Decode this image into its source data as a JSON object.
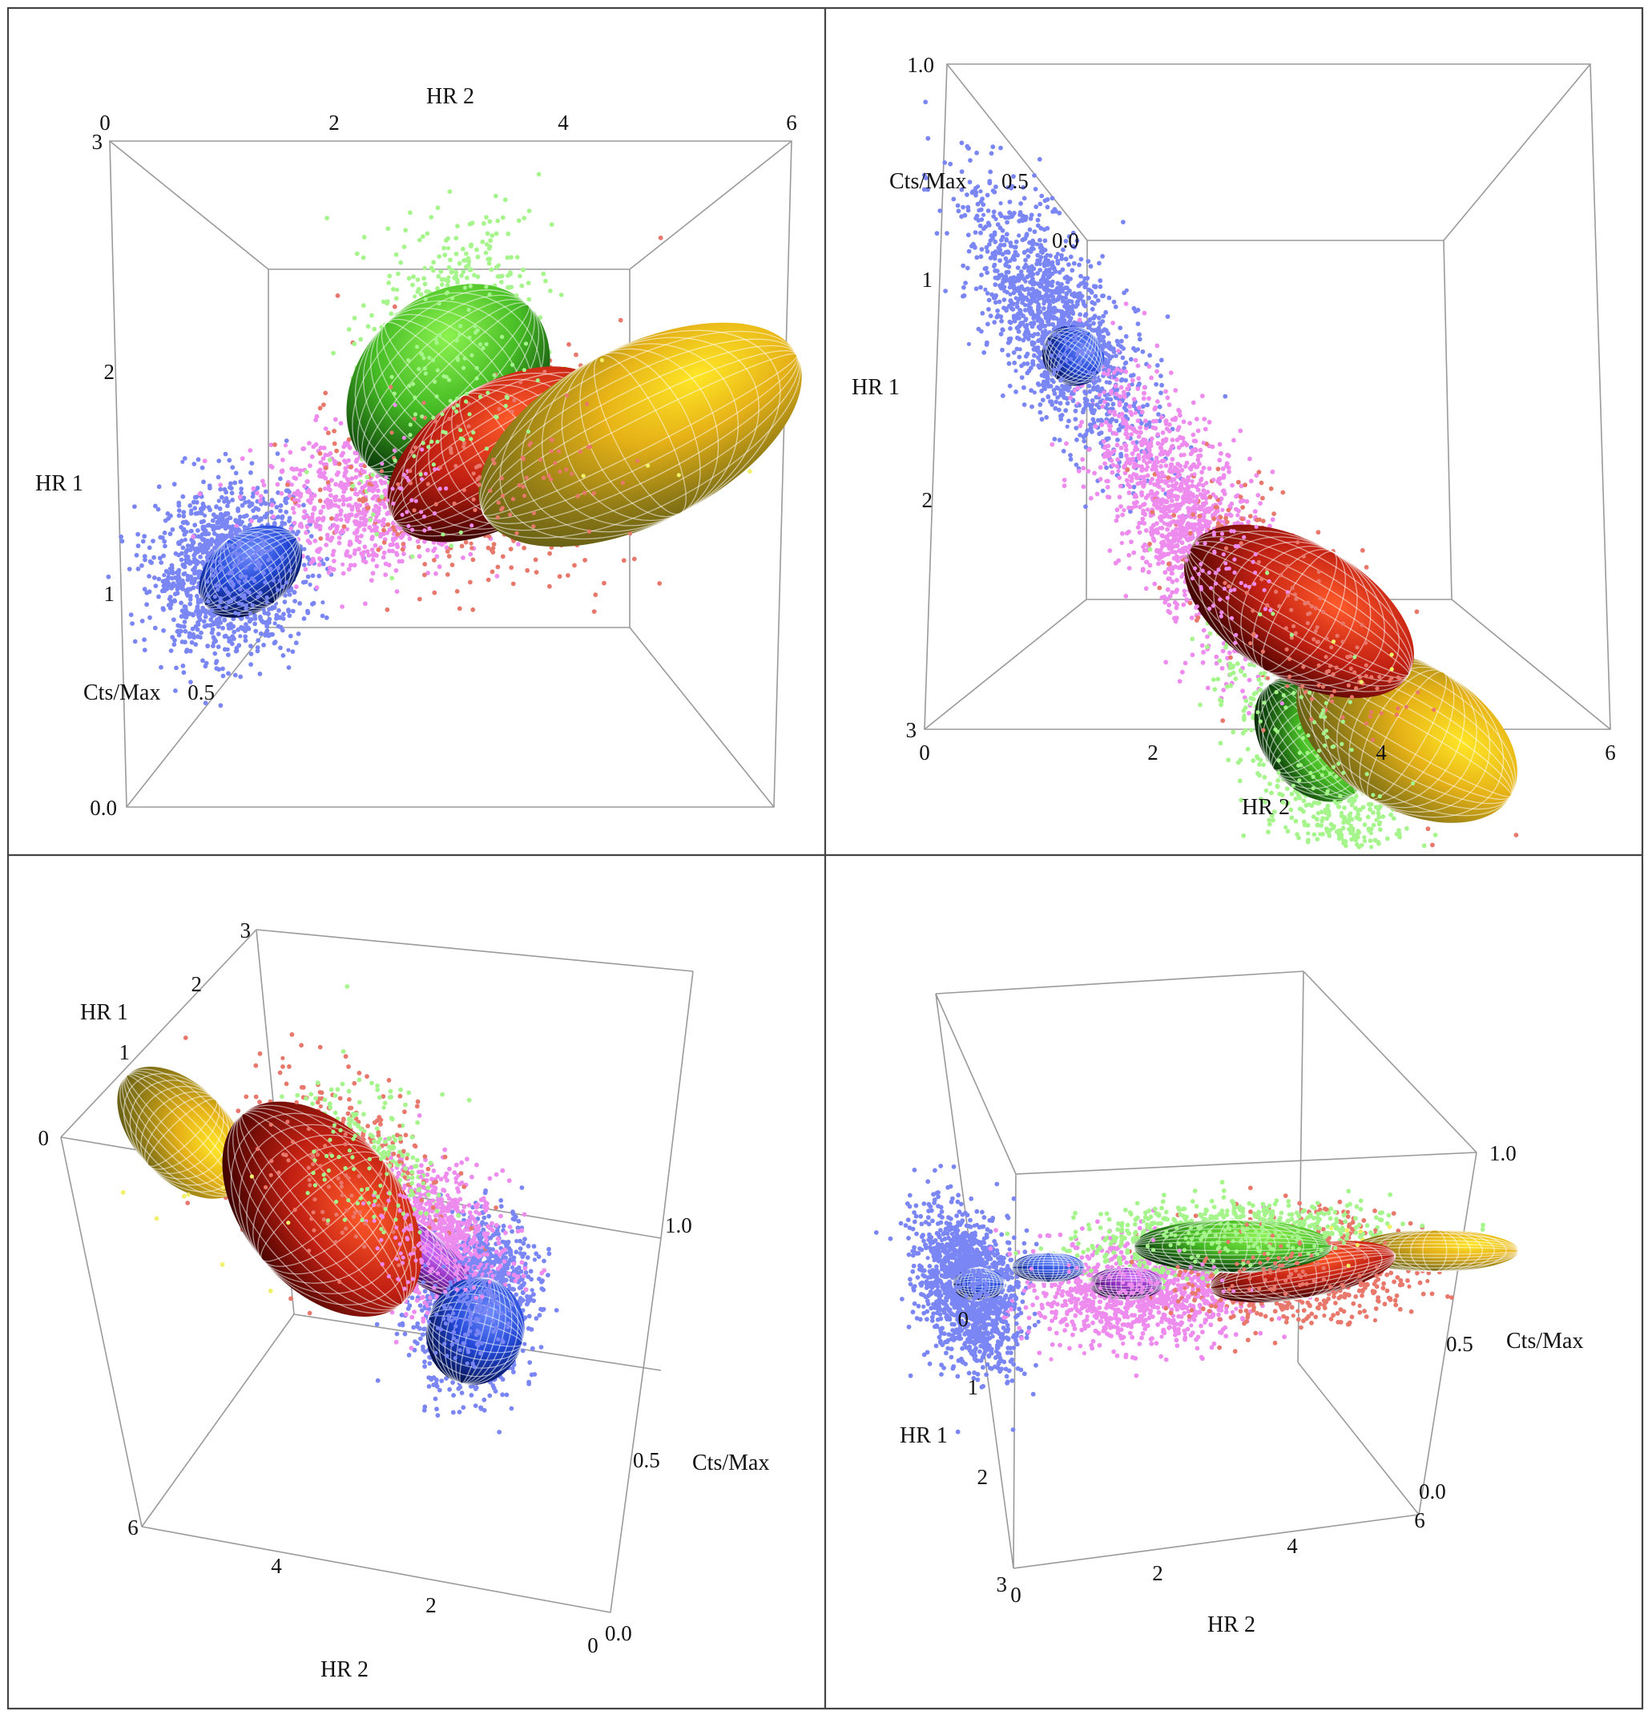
{
  "chart_data": [
    {
      "type": "scatter",
      "view": "top-left",
      "axes": {
        "x": {
          "label": "HR 2",
          "ticks": [
            "0",
            "2",
            "4",
            "6"
          ],
          "range": [
            0,
            6
          ]
        },
        "y": {
          "label": "HR 1",
          "ticks": [
            "1",
            "2",
            "3"
          ],
          "range": [
            0,
            3
          ]
        },
        "z": {
          "label": "Cts/Max",
          "ticks": [
            "0.0",
            "0.5"
          ],
          "range": [
            0,
            1
          ]
        }
      },
      "series": [
        {
          "color": "#7b86f5",
          "center": [
            0.9,
            0.95
          ],
          "spread": [
            0.8,
            0.45
          ],
          "count": 1400
        },
        {
          "color": "#ee8bee",
          "center": [
            2.2,
            1.3
          ],
          "spread": [
            1.2,
            0.4
          ],
          "count": 700
        },
        {
          "color": "#e8786b",
          "center": [
            3.4,
            1.5
          ],
          "spread": [
            1.6,
            0.6
          ],
          "count": 800
        },
        {
          "color": "#a6f58c",
          "center": [
            2.9,
            2.0
          ],
          "spread": [
            0.9,
            0.8
          ],
          "count": 900
        },
        {
          "color": "#f1f06a",
          "center": [
            4.5,
            1.6
          ],
          "spread": [
            1.2,
            0.5
          ],
          "count": 35
        }
      ],
      "ellipsoids": [
        {
          "color": "green",
          "center": [
            2.85,
            1.9
          ],
          "semi_axes": [
            1.1,
            0.45
          ],
          "rotation_deg": -45
        },
        {
          "color": "red",
          "center": [
            3.4,
            1.55
          ],
          "semi_axes": [
            1.2,
            0.35
          ],
          "rotation_deg": -32
        },
        {
          "color": "yellow",
          "center": [
            4.75,
            1.65
          ],
          "semi_axes": [
            1.7,
            0.45
          ],
          "rotation_deg": -27
        },
        {
          "color": "blue",
          "center": [
            1.1,
            0.95
          ],
          "semi_axes": [
            0.55,
            0.2
          ],
          "rotation_deg": -36
        }
      ]
    },
    {
      "type": "scatter",
      "view": "top-right",
      "axes": {
        "x": {
          "label": "HR 2",
          "ticks": [
            "0",
            "2",
            "4",
            "6"
          ],
          "range": [
            0,
            6
          ]
        },
        "y": {
          "label": "HR 1",
          "ticks": [
            "1",
            "2",
            "3"
          ],
          "range": [
            0,
            3
          ]
        },
        "z": {
          "label": "Cts/Max",
          "ticks": [
            "1.0",
            "0.5",
            "0.0"
          ],
          "range": [
            0,
            1
          ]
        }
      },
      "series": [
        {
          "color": "#7b86f5",
          "center": [
            1.3,
            0.95
          ],
          "spread": [
            0.9,
            0.55
          ],
          "count": 1300
        },
        {
          "color": "#ee8bee",
          "center": [
            2.3,
            1.5
          ],
          "spread": [
            1.0,
            0.6
          ],
          "count": 1300
        },
        {
          "color": "#e8786b",
          "center": [
            3.4,
            1.65
          ],
          "spread": [
            1.2,
            0.5
          ],
          "count": 900
        },
        {
          "color": "#a6f58c",
          "center": [
            3.1,
            2.3
          ],
          "spread": [
            0.9,
            0.8
          ],
          "count": 900
        },
        {
          "color": "#f1f06a",
          "center": [
            4.0,
            1.7
          ],
          "spread": [
            1.0,
            0.4
          ],
          "count": 30
        }
      ],
      "ellipsoids": [
        {
          "color": "blue",
          "center": [
            1.4,
            1.05
          ],
          "semi_axes": [
            0.25,
            0.12
          ],
          "rotation_deg": 35
        },
        {
          "color": "green",
          "center": [
            3.1,
            2.15
          ],
          "semi_axes": [
            0.55,
            0.2
          ],
          "rotation_deg": 52
        },
        {
          "color": "yellow",
          "center": [
            4.2,
            1.8
          ],
          "semi_axes": [
            0.95,
            0.3
          ],
          "rotation_deg": 30
        },
        {
          "color": "red",
          "center": [
            3.3,
            1.55
          ],
          "semi_axes": [
            1.0,
            0.28
          ],
          "rotation_deg": 30
        }
      ]
    },
    {
      "type": "scatter",
      "view": "bottom-left",
      "axes": {
        "x": {
          "label": "HR 2",
          "ticks": [
            "0",
            "2",
            "4",
            "6"
          ],
          "range": [
            0,
            6
          ]
        },
        "y": {
          "label": "HR 1",
          "ticks": [
            "0",
            "1",
            "2",
            "3"
          ],
          "range": [
            0,
            3
          ]
        },
        "z": {
          "label": "Cts/Max",
          "ticks": [
            "0.0",
            "0.5",
            "1.0"
          ],
          "range": [
            0,
            1
          ]
        }
      },
      "series": [
        {
          "color": "#7b86f5",
          "center": [
            0.6,
            0.55
          ],
          "spread": [
            0.7,
            0.6
          ],
          "count": 1600
        },
        {
          "color": "#ee8bee",
          "center": [
            1.3,
            0.8
          ],
          "spread": [
            1.0,
            0.5
          ],
          "count": 1000
        },
        {
          "color": "#e8786b",
          "center": [
            2.6,
            0.85
          ],
          "spread": [
            1.4,
            0.7
          ],
          "count": 600
        },
        {
          "color": "#a6f58c",
          "center": [
            2.3,
            0.95
          ],
          "spread": [
            0.9,
            0.6
          ],
          "count": 450
        },
        {
          "color": "#f1f06a",
          "center": [
            3.6,
            0.55
          ],
          "spread": [
            1.2,
            0.5
          ],
          "count": 30
        }
      ],
      "ellipsoids": [
        {
          "color": "yellow",
          "center": [
            4.4,
            0.62
          ],
          "semi_axes": [
            0.9,
            0.33
          ],
          "rotation_deg": 46
        },
        {
          "color": "violet",
          "center": [
            1.5,
            0.68
          ],
          "semi_axes": [
            0.9,
            0.18
          ],
          "rotation_deg": 38
        },
        {
          "color": "red",
          "center": [
            2.6,
            0.62
          ],
          "semi_axes": [
            1.4,
            0.55
          ],
          "rotation_deg": 50
        },
        {
          "color": "blue",
          "center": [
            0.5,
            0.38
          ],
          "semi_axes": [
            0.55,
            0.38
          ],
          "rotation_deg": 15
        }
      ]
    },
    {
      "type": "scatter",
      "view": "bottom-right",
      "axes": {
        "x": {
          "label": "HR 2",
          "ticks": [
            "0",
            "2",
            "4",
            "6"
          ],
          "range": [
            0,
            6
          ]
        },
        "y": {
          "label": "HR 1",
          "ticks": [
            "0",
            "1",
            "2",
            "3"
          ],
          "range": [
            0,
            3
          ]
        },
        "z": {
          "label": "Cts/Max",
          "ticks": [
            "0.0",
            "0.5",
            "1.0"
          ],
          "range": [
            0,
            1
          ]
        }
      },
      "series": [
        {
          "color": "#7b86f5",
          "center": [
            0.4,
            0.7
          ],
          "spread": [
            0.5,
            1.1
          ],
          "count": 1400
        },
        {
          "color": "#ee8bee",
          "center": [
            2.0,
            0.85
          ],
          "spread": [
            1.2,
            0.7
          ],
          "count": 1000
        },
        {
          "color": "#e8786b",
          "center": [
            3.5,
            0.7
          ],
          "spread": [
            1.3,
            0.7
          ],
          "count": 800
        },
        {
          "color": "#a6f58c",
          "center": [
            3.0,
            0.25
          ],
          "spread": [
            1.5,
            0.45
          ],
          "count": 1000
        },
        {
          "color": "#f1f06a",
          "center": [
            4.2,
            0.5
          ],
          "spread": [
            0.9,
            0.4
          ],
          "count": 20
        }
      ],
      "ellipsoids": [
        {
          "color": "violet",
          "center": [
            1.9,
            0.75
          ],
          "semi_axes": [
            0.35,
            0.2
          ],
          "rotation_deg": 0
        },
        {
          "color": "yellow",
          "center": [
            4.9,
            0.55
          ],
          "semi_axes": [
            0.8,
            0.25
          ],
          "rotation_deg": 0
        },
        {
          "color": "red",
          "center": [
            3.6,
            0.72
          ],
          "semi_axes": [
            0.9,
            0.32
          ],
          "rotation_deg": -10
        },
        {
          "color": "blue",
          "center": [
            0.5,
            0.66
          ],
          "semi_axes": [
            0.25,
            0.2
          ],
          "rotation_deg": 0
        },
        {
          "color": "blue",
          "center": [
            1.2,
            0.5
          ],
          "semi_axes": [
            0.35,
            0.18
          ],
          "rotation_deg": 0
        },
        {
          "color": "green",
          "center": [
            3.0,
            0.36
          ],
          "semi_axes": [
            0.95,
            0.32
          ],
          "rotation_deg": 0
        }
      ]
    }
  ]
}
